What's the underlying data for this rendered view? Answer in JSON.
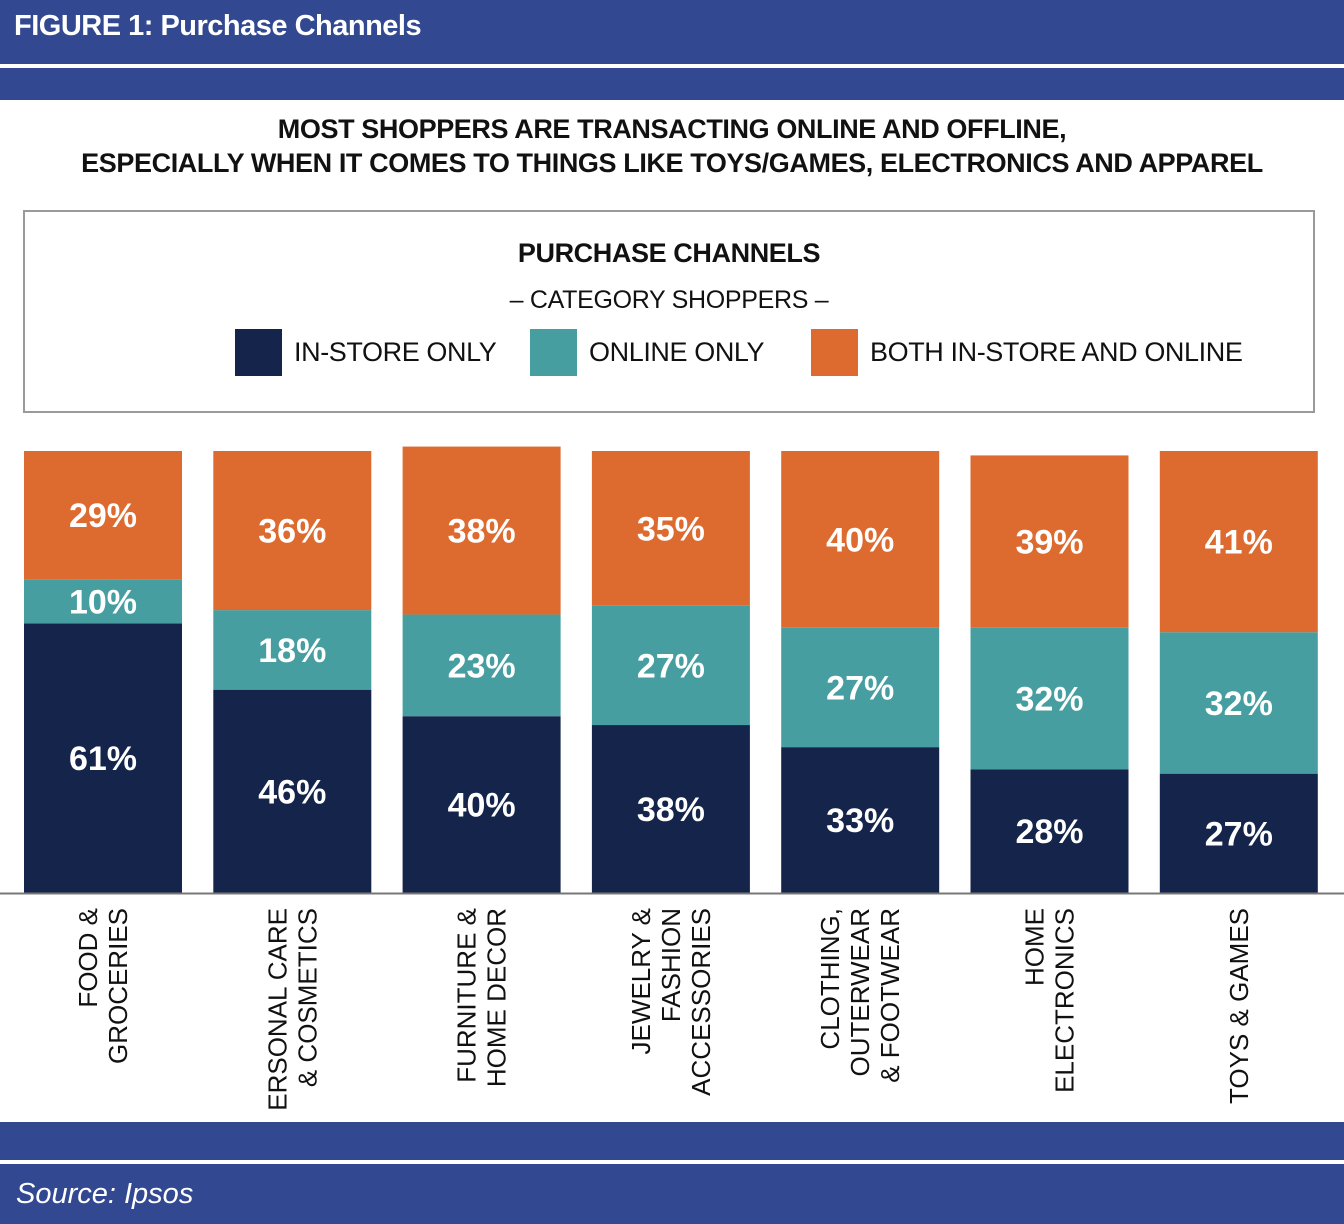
{
  "header": {
    "figure_title": "FIGURE 1: Purchase Channels"
  },
  "headline": {
    "line1": "MOST SHOPPERS ARE TRANSACTING ONLINE AND OFFLINE,",
    "line2": "ESPECIALLY WHEN IT COMES TO THINGS LIKE TOYS/GAMES, ELECTRONICS AND APPAREL"
  },
  "legend": {
    "title": "PURCHASE CHANNELS",
    "subtitle": "– CATEGORY SHOPPERS –",
    "items": [
      {
        "label": "IN-STORE ONLY",
        "color": "#14244a"
      },
      {
        "label": "ONLINE ONLY",
        "color": "#479ea0"
      },
      {
        "label": "BOTH IN-STORE AND ONLINE",
        "color": "#dd6b2f"
      }
    ]
  },
  "chart_data": {
    "type": "bar",
    "stacked": true,
    "categories": [
      [
        "FOOD &",
        "GROCERIES"
      ],
      [
        "PERSONAL CARE",
        "& COSMETICS"
      ],
      [
        "FURNITURE &",
        "HOME DECOR"
      ],
      [
        "JEWELRY &",
        "FASHION",
        "ACCESSORIES"
      ],
      [
        "CLOTHING,",
        "OUTERWEAR",
        "& FOOTWEAR"
      ],
      [
        "HOME",
        "ELECTRONICS"
      ],
      [
        "TOYS & GAMES"
      ]
    ],
    "series": [
      {
        "name": "IN-STORE ONLY",
        "color": "#14244a",
        "values": [
          61,
          46,
          40,
          38,
          33,
          28,
          27
        ]
      },
      {
        "name": "ONLINE ONLY",
        "color": "#479ea0",
        "values": [
          10,
          18,
          23,
          27,
          27,
          32,
          32
        ]
      },
      {
        "name": "BOTH IN-STORE AND ONLINE",
        "color": "#dd6b2f",
        "values": [
          29,
          36,
          38,
          35,
          40,
          39,
          41
        ]
      }
    ],
    "value_suffix": "%",
    "ylim": [
      0,
      100
    ]
  },
  "footer": {
    "source": "Source: Ipsos"
  }
}
